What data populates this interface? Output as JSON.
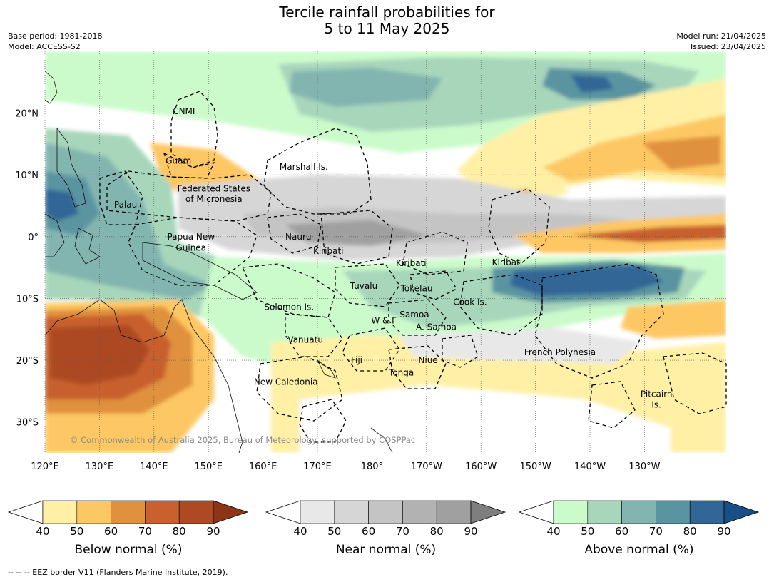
{
  "title_line1": "Tercile rainfall probabilities for",
  "title_line2": "5 to 11 May 2025",
  "base_period": "Base period: 1981-2018",
  "model": "Model: ACCESS-S2",
  "model_run": "Model run: 21/04/2025",
  "issued": "Issued: 23/04/2025",
  "copyright": "© Commonwealth of Australia 2025, Bureau of Meteorology, supported by COSPPac",
  "footer": "-- -- -- EEZ border V11 (Flanders Marine Institute, 2019).",
  "lon_ticks": [
    "120°E",
    "130°E",
    "140°E",
    "150°E",
    "160°E",
    "170°E",
    "180°",
    "170°W",
    "160°W",
    "150°W",
    "140°W",
    "130°W"
  ],
  "lat_ticks": [
    "20°N",
    "10°N",
    "0°",
    "10°S",
    "20°S",
    "30°S"
  ],
  "regions": [
    {
      "name": "CNMI",
      "lon": 145.5,
      "lat": 20.3
    },
    {
      "name": "Guam",
      "lon": 144.5,
      "lat": 12.3
    },
    {
      "name": "Marshall Is.",
      "lon": 167.5,
      "lat": 11.3
    },
    {
      "name": "Federated States",
      "lon": 151,
      "lat": 7.8
    },
    {
      "name": "of Micronesia",
      "lon": 151,
      "lat": 6.1
    },
    {
      "name": "Palau",
      "lon": 134.8,
      "lat": 5.2
    },
    {
      "name": "Papua New",
      "lon": 146.8,
      "lat": 0.0
    },
    {
      "name": "Guinea",
      "lon": 146.8,
      "lat": -1.8
    },
    {
      "name": "Nauru",
      "lon": 166.5,
      "lat": 0.0
    },
    {
      "name": "Kiribati",
      "lon": 172,
      "lat": -2.3
    },
    {
      "name": "Kiribati",
      "lon": -172.8,
      "lat": -4.3
    },
    {
      "name": "Kiribati",
      "lon": -155.2,
      "lat": -4.2
    },
    {
      "name": "Tuvalu",
      "lon": 178.5,
      "lat": -8.0
    },
    {
      "name": "Tokelau",
      "lon": -171.8,
      "lat": -8.4
    },
    {
      "name": "Cook Is.",
      "lon": -162,
      "lat": -10.6
    },
    {
      "name": "Solomon Is.",
      "lon": 164.8,
      "lat": -11.4
    },
    {
      "name": "Samoa",
      "lon": -172.2,
      "lat": -12.6
    },
    {
      "name": "W & F",
      "lon": -177.8,
      "lat": -13.6
    },
    {
      "name": "A. Samoa",
      "lon": -168.2,
      "lat": -14.6
    },
    {
      "name": "Vanuatu",
      "lon": 167.8,
      "lat": -16.7
    },
    {
      "name": "Fiji",
      "lon": 177.2,
      "lat": -20.0
    },
    {
      "name": "Niue",
      "lon": -169.7,
      "lat": -20.0
    },
    {
      "name": "French Polynesia",
      "lon": -145.5,
      "lat": -18.7
    },
    {
      "name": "Tonga",
      "lon": -174.6,
      "lat": -22.0
    },
    {
      "name": "New Caledonia",
      "lon": 164.2,
      "lat": -23.5
    },
    {
      "name": "Pitcairn",
      "lon": -127.8,
      "lat": -25.5
    },
    {
      "name": "Is.",
      "lon": -127.8,
      "lat": -27.2
    }
  ],
  "colorbars": [
    {
      "title": "Below normal (%)",
      "ticks": [
        "40",
        "50",
        "60",
        "70",
        "80",
        "90"
      ],
      "colors": [
        "#ffffff",
        "#fff0a6",
        "#fdc864",
        "#e0913e",
        "#c8612e",
        "#ad4923",
        "#8e3417"
      ]
    },
    {
      "title": "Near normal (%)",
      "ticks": [
        "40",
        "50",
        "60",
        "70",
        "80",
        "90"
      ],
      "colors": [
        "#ffffff",
        "#e8e8e8",
        "#d6d6d6",
        "#c4c4c4",
        "#b2b2b2",
        "#a0a0a0",
        "#7e7e7e"
      ]
    },
    {
      "title": "Above normal (%)",
      "ticks": [
        "40",
        "50",
        "60",
        "70",
        "80",
        "90"
      ],
      "colors": [
        "#ffffff",
        "#cbfbcb",
        "#a7d6bb",
        "#82b5b0",
        "#5a94a0",
        "#326696",
        "#174f86"
      ]
    }
  ]
}
